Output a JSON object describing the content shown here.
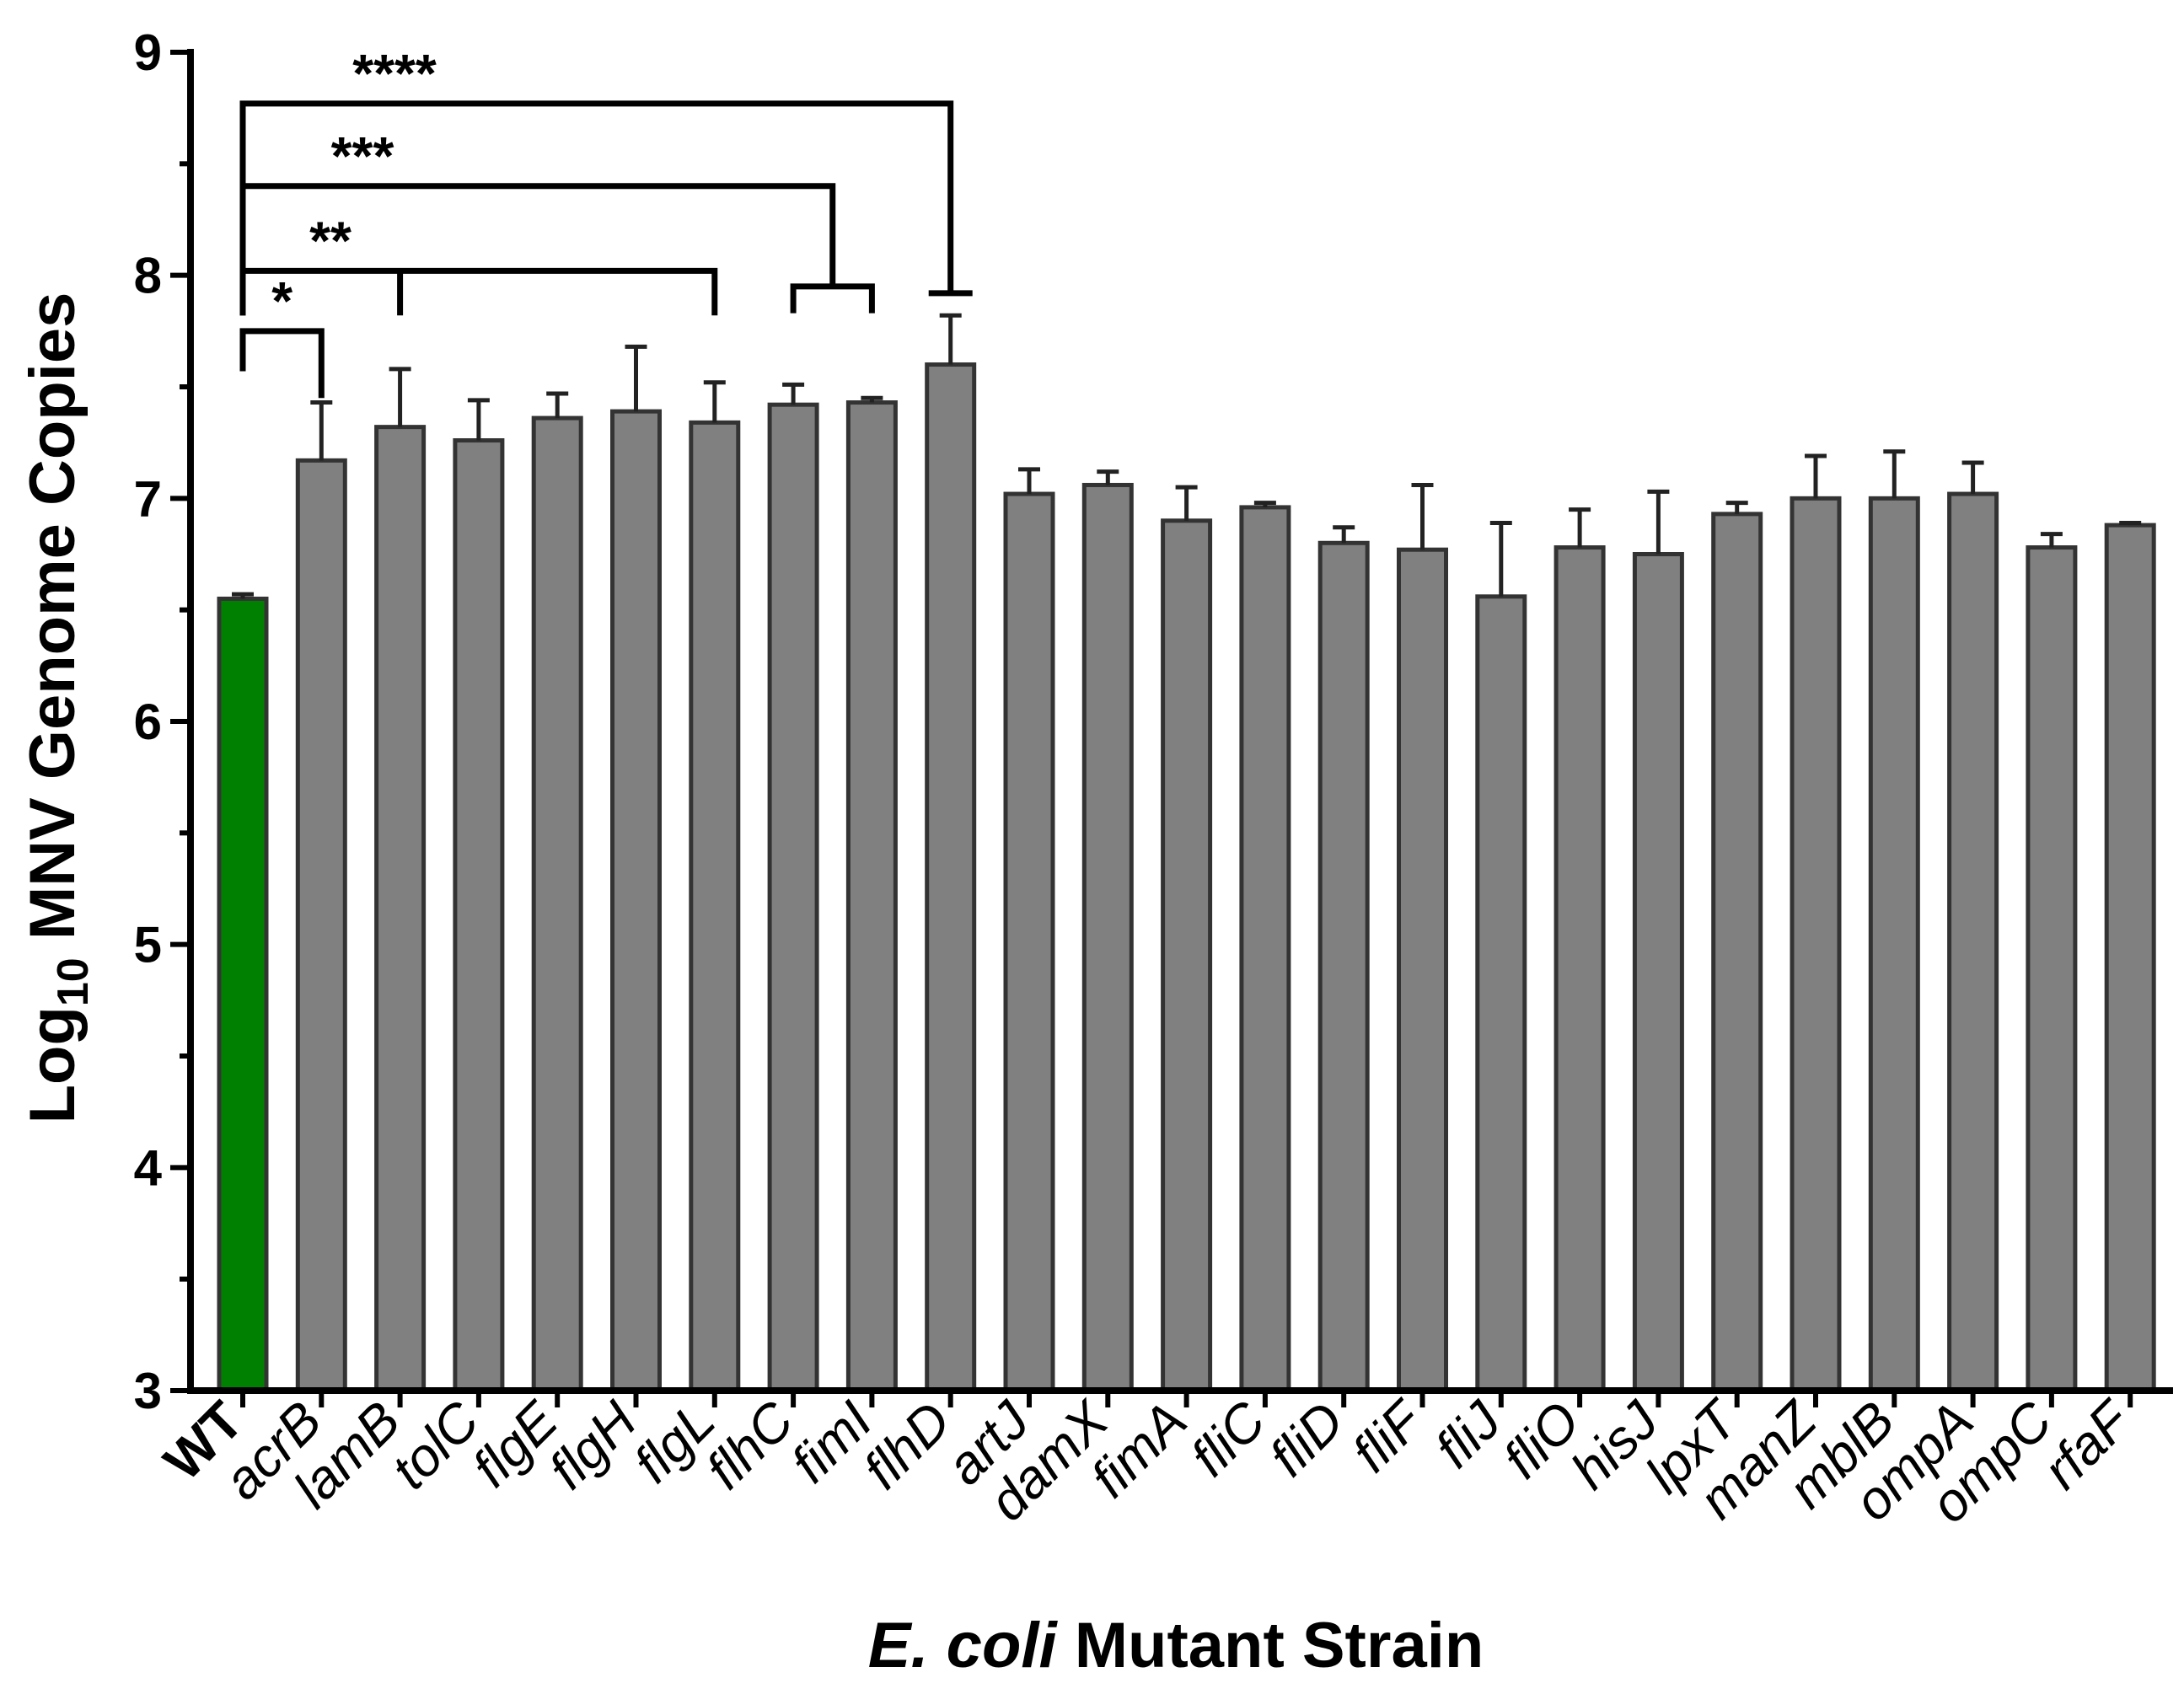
{
  "chart_data": {
    "type": "bar",
    "xlabel_italic": "E. coli",
    "xlabel_rest": " Mutant Strain",
    "ylabel": {
      "pre": "Log",
      "sub": "10",
      "post": " MNV Genome Copies"
    },
    "ylim": [
      3,
      9
    ],
    "yticks": [
      3,
      4,
      5,
      6,
      7,
      8,
      9
    ],
    "categories": [
      "WT",
      "acrB",
      "lamB",
      "tolC",
      "flgE",
      "flgH",
      "flgL",
      "flhC",
      "fimI",
      "flhD",
      "artJ",
      "damX",
      "fimA",
      "fliC",
      "fliD",
      "fliF",
      "fliJ",
      "fliO",
      "hisJ",
      "lpxT",
      "manZ",
      "mblB",
      "ompA",
      "ompC",
      "rfaF"
    ],
    "values": [
      6.55,
      7.17,
      7.32,
      7.26,
      7.36,
      7.39,
      7.34,
      7.42,
      7.43,
      7.6,
      7.02,
      7.06,
      6.9,
      6.96,
      6.8,
      6.77,
      6.56,
      6.78,
      6.75,
      6.93,
      7.0,
      7.0,
      7.02,
      6.78,
      6.88
    ],
    "errors": [
      0.02,
      0.26,
      0.26,
      0.18,
      0.11,
      0.29,
      0.18,
      0.09,
      0.02,
      0.22,
      0.11,
      0.06,
      0.15,
      0.02,
      0.07,
      0.29,
      0.33,
      0.17,
      0.28,
      0.05,
      0.19,
      0.21,
      0.14,
      0.06,
      0.01
    ],
    "colors": {
      "wt": "#008000",
      "mutant": "#808080"
    },
    "comparisons": [
      {
        "label": "*",
        "from": 0,
        "to": [
          1
        ],
        "level": 7.75
      },
      {
        "label": "**",
        "from": 0,
        "to": [
          2,
          6
        ],
        "level": 8.02
      },
      {
        "label": "***",
        "from": 0,
        "to": [
          7,
          8
        ],
        "level": 8.4
      },
      {
        "label": "****",
        "from": 0,
        "to": [
          9
        ],
        "level": 8.77
      }
    ]
  }
}
